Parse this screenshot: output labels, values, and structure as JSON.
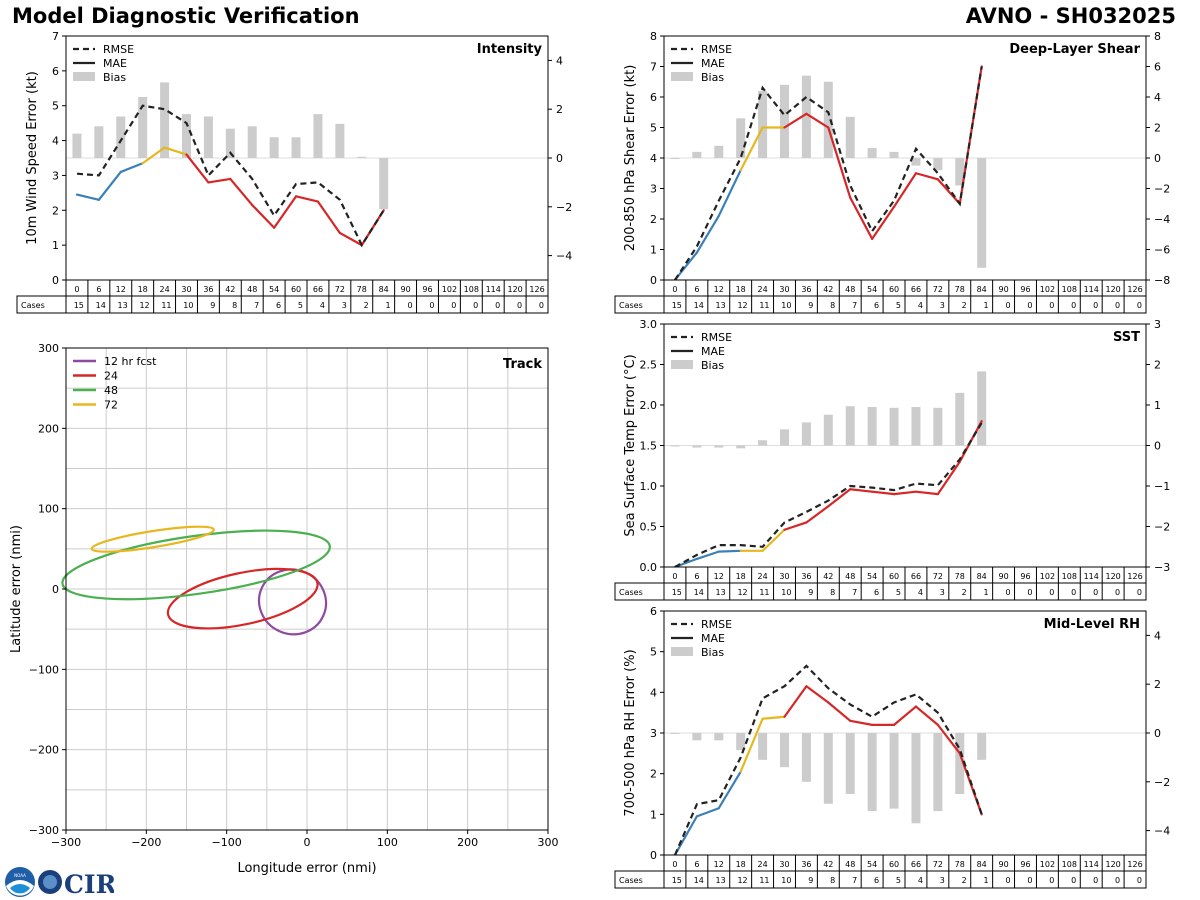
{
  "header": {
    "title": "Model Diagnostic Verification",
    "storm_label": "AVNO - SH032025"
  },
  "legend_labels": {
    "rmse": "RMSE",
    "mae": "MAE",
    "bias": "Bias"
  },
  "tables": {
    "forecast_hours": [
      "0",
      "6",
      "12",
      "18",
      "24",
      "30",
      "36",
      "42",
      "48",
      "54",
      "60",
      "66",
      "72",
      "78",
      "84",
      "90",
      "96",
      "102",
      "108",
      "114",
      "120",
      "126"
    ],
    "cases_label": "Cases",
    "cases": [
      "15",
      "14",
      "13",
      "12",
      "11",
      "10",
      "9",
      "8",
      "7",
      "6",
      "5",
      "4",
      "3",
      "2",
      "1",
      "0",
      "0",
      "0",
      "0",
      "0",
      "0",
      "0"
    ]
  },
  "logos": {
    "noaa": "NOAA",
    "cira": "CIRA"
  },
  "colors": {
    "rmse": "#222222",
    "bias": "#cccccc",
    "grid": "#cccccc",
    "seg_blue": "#3a7fb8",
    "seg_yellow": "#e6b81e",
    "seg_red": "#d62728",
    "track_12": "#8e4a9f",
    "track_24": "#d62728",
    "track_48": "#4caf50",
    "track_72": "#e6b81e"
  },
  "chart_data": [
    {
      "id": "intensity",
      "type": "line",
      "title": "Intensity",
      "ylabel": "10m Wind Speed Error (kt)",
      "ylim": [
        0,
        7
      ],
      "yticks": [
        0,
        1,
        2,
        3,
        4,
        5,
        6,
        7
      ],
      "y2lim": [
        -5,
        5
      ],
      "y2ticks": [
        -4,
        -2,
        0,
        2,
        4
      ],
      "x": [
        0,
        6,
        12,
        18,
        24,
        30,
        36,
        42,
        48,
        54,
        60,
        66,
        72,
        78,
        84
      ],
      "rmse": [
        3.05,
        3.0,
        4.0,
        5.0,
        4.9,
        4.5,
        3.0,
        3.65,
        2.9,
        1.85,
        2.75,
        2.8,
        2.3,
        1.0,
        2.0
      ],
      "mae": [
        2.45,
        2.3,
        3.1,
        3.35,
        3.8,
        3.6,
        2.8,
        2.9,
        2.15,
        1.5,
        2.4,
        2.25,
        1.35,
        1.0,
        2.0
      ],
      "bias": [
        1.0,
        1.3,
        1.7,
        2.5,
        3.1,
        1.8,
        1.7,
        1.2,
        1.3,
        0.85,
        0.85,
        1.8,
        1.4,
        0.05,
        -2.1
      ]
    },
    {
      "id": "shear",
      "type": "line",
      "title": "Deep-Layer Shear",
      "ylabel": "200-850 hPa Shear Error (kt)",
      "ylim": [
        0,
        8
      ],
      "yticks": [
        0,
        1,
        2,
        3,
        4,
        5,
        6,
        7,
        8
      ],
      "y2lim": [
        -8,
        8
      ],
      "y2ticks": [
        -8,
        -6,
        -4,
        -2,
        0,
        2,
        4,
        6,
        8
      ],
      "x": [
        0,
        6,
        12,
        18,
        24,
        30,
        36,
        42,
        48,
        54,
        60,
        66,
        72,
        78,
        84
      ],
      "rmse": [
        0.0,
        1.1,
        2.6,
        4.0,
        6.3,
        5.4,
        6.0,
        5.5,
        3.1,
        1.6,
        2.6,
        4.3,
        3.5,
        2.5,
        7.0
      ],
      "mae": [
        0.0,
        0.9,
        2.1,
        3.6,
        5.0,
        5.0,
        5.45,
        5.0,
        2.7,
        1.35,
        2.4,
        3.5,
        3.3,
        2.5,
        7.0
      ],
      "bias": [
        0.0,
        0.4,
        0.8,
        2.6,
        4.4,
        4.8,
        5.4,
        5.0,
        2.7,
        0.65,
        0.4,
        -0.5,
        -0.8,
        -1.8,
        -7.2
      ]
    },
    {
      "id": "sst",
      "type": "line",
      "title": "SST",
      "ylabel": "Sea Surface Temp Error (°C)",
      "ylim": [
        0,
        3
      ],
      "yticks": [
        0.0,
        0.5,
        1.0,
        1.5,
        2.0,
        2.5,
        3.0
      ],
      "y2lim": [
        -3,
        3
      ],
      "y2ticks": [
        -3,
        -2,
        -1,
        0,
        1,
        2,
        3
      ],
      "x": [
        0,
        6,
        12,
        18,
        24,
        30,
        36,
        42,
        48,
        54,
        60,
        66,
        72,
        78,
        84
      ],
      "rmse": [
        0.0,
        0.15,
        0.27,
        0.27,
        0.25,
        0.55,
        0.68,
        0.82,
        1.0,
        0.98,
        0.95,
        1.03,
        1.01,
        1.33,
        1.78
      ],
      "mae": [
        0.0,
        0.1,
        0.19,
        0.2,
        0.2,
        0.46,
        0.55,
        0.75,
        0.96,
        0.93,
        0.9,
        0.93,
        0.9,
        1.3,
        1.8
      ],
      "bias": [
        0.0,
        -0.05,
        -0.05,
        -0.07,
        0.13,
        0.4,
        0.57,
        0.76,
        0.97,
        0.95,
        0.93,
        0.95,
        0.93,
        1.3,
        1.83
      ]
    },
    {
      "id": "rh",
      "type": "line",
      "title": "Mid-Level RH",
      "ylabel": "700-500 hPa RH Error (%)",
      "ylim": [
        0,
        6
      ],
      "yticks": [
        0,
        1,
        2,
        3,
        4,
        5,
        6
      ],
      "y2lim": [
        -5,
        5
      ],
      "y2ticks": [
        -4,
        -2,
        0,
        2,
        4
      ],
      "x": [
        0,
        6,
        12,
        18,
        24,
        30,
        36,
        42,
        48,
        54,
        60,
        66,
        72,
        78,
        84
      ],
      "rmse": [
        0.0,
        1.25,
        1.35,
        2.4,
        3.85,
        4.15,
        4.65,
        4.1,
        3.7,
        3.4,
        3.75,
        3.95,
        3.5,
        2.6,
        1.0
      ],
      "mae": [
        0.0,
        0.95,
        1.15,
        2.05,
        3.35,
        3.4,
        4.15,
        3.75,
        3.3,
        3.2,
        3.2,
        3.65,
        3.2,
        2.5,
        1.0
      ],
      "bias": [
        0.0,
        -0.3,
        -0.3,
        -0.7,
        -1.1,
        -1.4,
        -2.0,
        -2.9,
        -2.5,
        -3.2,
        -3.1,
        -3.7,
        -3.2,
        -2.5,
        -1.1
      ]
    },
    {
      "id": "track",
      "type": "scatter",
      "title": "Track",
      "xlabel": "Longitude error (nmi)",
      "ylabel": "Latitude error (nmi)",
      "xlim": [
        -300,
        300
      ],
      "ylim": [
        -300,
        300
      ],
      "ticks": [
        -300,
        -200,
        -100,
        0,
        100,
        200,
        300
      ],
      "legend": [
        "12 hr fcst",
        "24",
        "48",
        "72"
      ],
      "ellipses": [
        {
          "label": "12 hr fcst",
          "cx": -18,
          "cy": -16,
          "rx": 42,
          "ry": 40,
          "rot_deg": -25
        },
        {
          "label": "24",
          "cx": -80,
          "cy": -12,
          "rx": 95,
          "ry": 32,
          "rot_deg": 12
        },
        {
          "label": "48",
          "cx": -138,
          "cy": 30,
          "rx": 168,
          "ry": 36,
          "rot_deg": 8
        },
        {
          "label": "72",
          "cx": -192,
          "cy": 62,
          "rx": 77,
          "ry": 10,
          "rot_deg": 9
        }
      ]
    }
  ]
}
